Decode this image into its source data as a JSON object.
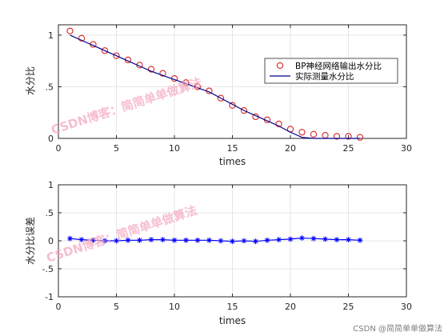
{
  "chart_data": [
    {
      "type": "line",
      "xlabel": "times",
      "ylabel": "水分比",
      "xlim": [
        0,
        30
      ],
      "ylim": [
        0,
        1.1
      ],
      "xticks": [
        0,
        5,
        10,
        15,
        20,
        25,
        30
      ],
      "yticks": [
        0,
        0.5,
        1
      ],
      "grid": true,
      "legend_position": "right",
      "series": [
        {
          "name": "BP神经网络输出水分比",
          "style": "markers",
          "marker": "circle",
          "color": "#d62728",
          "x": [
            1,
            2,
            3,
            4,
            5,
            6,
            7,
            8,
            9,
            10,
            11,
            12,
            13,
            14,
            15,
            16,
            17,
            18,
            19,
            20,
            21,
            22,
            23,
            24,
            25,
            26
          ],
          "y": [
            1.04,
            0.97,
            0.91,
            0.85,
            0.8,
            0.76,
            0.71,
            0.67,
            0.63,
            0.58,
            0.54,
            0.5,
            0.46,
            0.39,
            0.32,
            0.27,
            0.21,
            0.18,
            0.14,
            0.09,
            0.06,
            0.04,
            0.03,
            0.02,
            0.02,
            0.01
          ]
        },
        {
          "name": "实际测量水分比",
          "style": "line",
          "color": "#00008b",
          "x": [
            1,
            2,
            3,
            4,
            5,
            6,
            7,
            8,
            9,
            10,
            11,
            12,
            13,
            14,
            15,
            16,
            17,
            18,
            19,
            20,
            21,
            22,
            23,
            24,
            25,
            26
          ],
          "y": [
            1.0,
            0.95,
            0.9,
            0.85,
            0.8,
            0.75,
            0.7,
            0.65,
            0.61,
            0.57,
            0.53,
            0.49,
            0.45,
            0.39,
            0.33,
            0.27,
            0.22,
            0.17,
            0.12,
            0.06,
            0.01,
            0.0,
            0.0,
            0.0,
            0.0,
            0.0
          ]
        }
      ]
    },
    {
      "type": "scatter",
      "xlabel": "times",
      "ylabel": "水分比误差",
      "xlim": [
        0,
        30
      ],
      "ylim": [
        -1,
        1
      ],
      "xticks": [
        0,
        5,
        10,
        15,
        20,
        25,
        30
      ],
      "yticks": [
        -1,
        -0.5,
        0,
        0.5,
        1
      ],
      "grid": true,
      "series": [
        {
          "style": "markers-line",
          "marker": "asterisk",
          "color": "#0000ff",
          "x": [
            1,
            2,
            3,
            4,
            5,
            6,
            7,
            8,
            9,
            10,
            11,
            12,
            13,
            14,
            15,
            16,
            17,
            18,
            19,
            20,
            21,
            22,
            23,
            24,
            25,
            26
          ],
          "y": [
            0.04,
            0.02,
            0.01,
            0.0,
            0.0,
            0.01,
            0.01,
            0.02,
            0.02,
            0.01,
            0.01,
            0.01,
            0.01,
            0.0,
            -0.01,
            0.0,
            -0.01,
            0.01,
            0.02,
            0.03,
            0.05,
            0.04,
            0.03,
            0.02,
            0.02,
            0.01
          ]
        }
      ]
    }
  ],
  "watermarks": [
    "CSDN博客：简简单单做算法",
    "CSDN博客：简简单单做算法"
  ],
  "credit": "CSDN @简简单单做算法"
}
